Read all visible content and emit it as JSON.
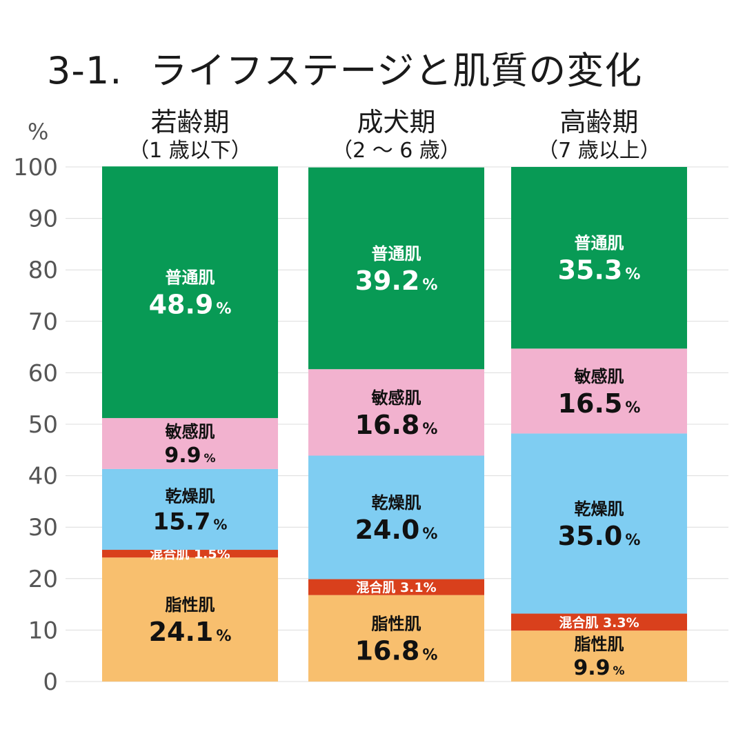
{
  "title": {
    "number": "3-1.",
    "text": "ライフステージと肌質の変化"
  },
  "chart_data": {
    "type": "bar",
    "stacked": true,
    "yunit": "%",
    "ylim": [
      0,
      100
    ],
    "yticks": [
      0,
      10,
      20,
      30,
      40,
      50,
      60,
      70,
      80,
      90,
      100
    ],
    "grid": true,
    "categories": [
      {
        "name": "若齢期",
        "sub": "（1 歳以下）"
      },
      {
        "name": "成犬期",
        "sub": "（2 ～ 6 歳）"
      },
      {
        "name": "高齢期",
        "sub": "（7 歳以上）"
      }
    ],
    "value_unit": "%",
    "series": [
      {
        "name": "脂性肌",
        "color": "#F8BF6E",
        "label_color": "#111111",
        "inline": false,
        "values": [
          24.1,
          16.8,
          9.9
        ]
      },
      {
        "name": "混合肌",
        "color": "#D9401C",
        "label_color": "#ffffff",
        "inline": true,
        "values": [
          1.5,
          3.1,
          3.3
        ]
      },
      {
        "name": "乾燥肌",
        "color": "#7FCDF2",
        "label_color": "#111111",
        "inline": false,
        "values": [
          15.7,
          24.0,
          35.0
        ]
      },
      {
        "name": "敏感肌",
        "color": "#F2B2CF",
        "label_color": "#111111",
        "inline": false,
        "values": [
          9.9,
          16.8,
          16.5
        ]
      },
      {
        "name": "普通肌",
        "color": "#089A55",
        "label_color": "#ffffff",
        "inline": false,
        "values": [
          48.9,
          39.2,
          35.3
        ]
      }
    ]
  }
}
